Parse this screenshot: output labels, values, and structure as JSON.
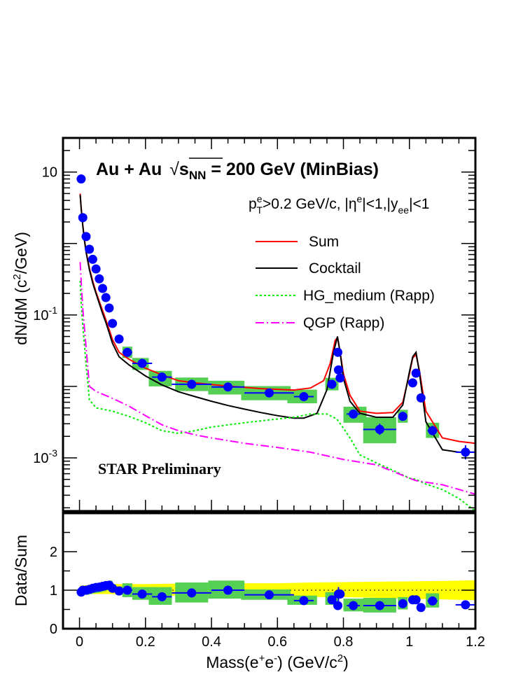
{
  "chart_data": [
    {
      "type": "scatter",
      "panel": "main",
      "title": "Au + Au √sNN = 200 GeV (MinBias)",
      "title_parts": {
        "system": "Au + Au",
        "sqrt": "s",
        "sub": "NN",
        "rest": " = 200 GeV (MinBias)"
      },
      "cuts_label": "pTe>0.2 GeV/c, |ηe|<1,|yee|<1",
      "cuts_parts": {
        "p": "p",
        "p_sup": "e",
        "p_sub": "T",
        "p_rest": ">0.2 GeV/c, |η",
        "eta_sup": "e",
        "eta_rest": "|<1,|y",
        "y_sub": "ee",
        "y_rest": "|<1"
      },
      "annotation": "STAR Preliminary",
      "ylabel": "dN/dM (c²/GeV)",
      "ylabel_parts": {
        "pre": "dN/dM (c",
        "sup": "2",
        "post": "/GeV)"
      },
      "y_scale": "log",
      "xlim": [
        -0.05,
        1.2
      ],
      "ylim": [
        0.00018,
        30
      ],
      "y_ticks": [
        {
          "value": 10,
          "mant": "10",
          "exp": ""
        },
        {
          "value": 0.1,
          "mant": "10",
          "exp": "-1"
        },
        {
          "value": 0.001,
          "mant": "10",
          "exp": "-3"
        }
      ],
      "legend": [
        {
          "label": "Sum",
          "color": "#ff0000",
          "style": "solid"
        },
        {
          "label": "Cocktail",
          "color": "#000000",
          "style": "solid"
        },
        {
          "label": "HG_medium (Rapp)",
          "color": "#00ee00",
          "style": "dotted"
        },
        {
          "label": "QGP (Rapp)",
          "color": "#ff00ff",
          "style": "dashdot"
        }
      ],
      "series": [
        {
          "name": "Sum",
          "color": "#ff0000",
          "x": [
            0.002,
            0.005,
            0.01,
            0.015,
            0.02,
            0.03,
            0.04,
            0.05,
            0.06,
            0.07,
            0.08,
            0.09,
            0.1,
            0.12,
            0.15,
            0.2,
            0.25,
            0.3,
            0.35,
            0.4,
            0.45,
            0.5,
            0.55,
            0.6,
            0.65,
            0.7,
            0.74,
            0.76,
            0.775,
            0.782,
            0.79,
            0.8,
            0.82,
            0.85,
            0.9,
            0.95,
            0.98,
            1.0,
            1.01,
            1.02,
            1.03,
            1.05,
            1.1,
            1.15,
            1.2
          ],
          "y": [
            5.0,
            3.2,
            1.8,
            1.15,
            0.78,
            0.45,
            0.3,
            0.21,
            0.155,
            0.115,
            0.085,
            0.062,
            0.045,
            0.03,
            0.024,
            0.018,
            0.0145,
            0.012,
            0.0112,
            0.0106,
            0.0101,
            0.0097,
            0.0093,
            0.0091,
            0.0089,
            0.0095,
            0.012,
            0.021,
            0.044,
            0.048,
            0.03,
            0.015,
            0.0075,
            0.0045,
            0.0042,
            0.0043,
            0.006,
            0.015,
            0.025,
            0.028,
            0.017,
            0.0045,
            0.0019,
            0.0017,
            0.0016
          ]
        },
        {
          "name": "Cocktail",
          "color": "#000000",
          "x": [
            0.002,
            0.005,
            0.01,
            0.015,
            0.02,
            0.03,
            0.04,
            0.05,
            0.06,
            0.07,
            0.08,
            0.09,
            0.1,
            0.12,
            0.15,
            0.2,
            0.25,
            0.3,
            0.35,
            0.4,
            0.45,
            0.5,
            0.55,
            0.6,
            0.65,
            0.68,
            0.72,
            0.75,
            0.77,
            0.782,
            0.79,
            0.8,
            0.82,
            0.85,
            0.9,
            0.95,
            0.98,
            1.0,
            1.01,
            1.02,
            1.03,
            1.05,
            1.1,
            1.15,
            1.2
          ],
          "y": [
            4.8,
            3.1,
            1.75,
            1.1,
            0.75,
            0.43,
            0.28,
            0.2,
            0.145,
            0.105,
            0.078,
            0.056,
            0.04,
            0.026,
            0.02,
            0.014,
            0.0105,
            0.0084,
            0.0072,
            0.0062,
            0.0054,
            0.0048,
            0.0043,
            0.0039,
            0.0036,
            0.0036,
            0.0042,
            0.009,
            0.03,
            0.05,
            0.03,
            0.013,
            0.0062,
            0.0042,
            0.0037,
            0.0037,
            0.0055,
            0.016,
            0.026,
            0.03,
            0.016,
            0.0032,
            0.0013,
            0.0012,
            0.0012
          ]
        },
        {
          "name": "HG_medium (Rapp)",
          "color": "#00ee00",
          "x": [
            0.002,
            0.005,
            0.01,
            0.02,
            0.03,
            0.05,
            0.1,
            0.15,
            0.2,
            0.25,
            0.3,
            0.35,
            0.4,
            0.5,
            0.6,
            0.65,
            0.7,
            0.75,
            0.78,
            0.8,
            0.82,
            0.85,
            0.9,
            0.95,
            1.0,
            1.02,
            1.05,
            1.1,
            1.15,
            1.2
          ],
          "y": [
            0.3,
            0.15,
            0.07,
            0.02,
            0.0065,
            0.005,
            0.0045,
            0.0038,
            0.0031,
            0.0024,
            0.0022,
            0.0024,
            0.0027,
            0.0031,
            0.0035,
            0.0037,
            0.0041,
            0.0041,
            0.0035,
            0.0026,
            0.0019,
            0.0011,
            0.00085,
            0.00067,
            0.00052,
            0.0005,
            0.00043,
            0.00036,
            0.00027,
            0.00018
          ]
        },
        {
          "name": "QGP (Rapp)",
          "color": "#ff00ff",
          "x": [
            0.002,
            0.005,
            0.01,
            0.02,
            0.03,
            0.05,
            0.1,
            0.15,
            0.2,
            0.25,
            0.3,
            0.35,
            0.4,
            0.5,
            0.6,
            0.7,
            0.8,
            0.9,
            1.0,
            1.02,
            1.1,
            1.2
          ],
          "y": [
            0.55,
            0.3,
            0.12,
            0.035,
            0.01,
            0.0085,
            0.0068,
            0.0053,
            0.0039,
            0.0029,
            0.0024,
            0.0021,
            0.0019,
            0.0016,
            0.0014,
            0.0012,
            0.00095,
            0.0008,
            0.00052,
            0.00048,
            0.00042,
            0.00031
          ]
        }
      ],
      "data": {
        "name": "Data",
        "color": "#0000ff",
        "x": [
          0.005,
          0.01,
          0.02,
          0.03,
          0.04,
          0.05,
          0.06,
          0.07,
          0.08,
          0.09,
          0.1,
          0.12,
          0.145,
          0.19,
          0.25,
          0.34,
          0.45,
          0.575,
          0.68,
          0.765,
          0.783,
          0.785,
          0.79,
          0.83,
          0.91,
          0.98,
          1.01,
          1.02,
          1.035,
          1.07,
          1.17
        ],
        "y": [
          8.0,
          2.3,
          1.25,
          0.83,
          0.6,
          0.44,
          0.32,
          0.235,
          0.175,
          0.125,
          0.076,
          0.046,
          0.03,
          0.021,
          0.0135,
          0.0107,
          0.0098,
          0.0081,
          0.0072,
          0.0107,
          0.03,
          0.017,
          0.0131,
          0.0041,
          0.0025,
          0.0038,
          0.0112,
          0.0153,
          0.0069,
          0.0024,
          0.0012
        ],
        "xerr": [
          0.005,
          0.005,
          0.005,
          0.005,
          0.005,
          0.005,
          0.005,
          0.005,
          0.005,
          0.005,
          0.005,
          0.01,
          0.015,
          0.03,
          0.03,
          0.06,
          0.05,
          0.075,
          0.03,
          0.01,
          0.003,
          0.003,
          0.003,
          0.02,
          0.05,
          0.01,
          0.003,
          0.003,
          0.005,
          0.015,
          0.03
        ],
        "ylo": [
          8.0,
          2.3,
          1.25,
          0.83,
          0.6,
          0.44,
          0.32,
          0.235,
          0.175,
          0.125,
          0.076,
          0.046,
          0.03,
          0.021,
          0.0135,
          0.0107,
          0.0098,
          0.0081,
          0.0072,
          0.0107,
          0.028,
          0.016,
          0.0122,
          0.0036,
          0.0021,
          0.0034,
          0.0102,
          0.0142,
          0.0062,
          0.0021,
          0.00095
        ],
        "yhi": [
          8.0,
          2.3,
          1.25,
          0.83,
          0.6,
          0.44,
          0.32,
          0.235,
          0.175,
          0.125,
          0.076,
          0.046,
          0.03,
          0.021,
          0.0135,
          0.0107,
          0.0098,
          0.0081,
          0.0072,
          0.0107,
          0.032,
          0.018,
          0.014,
          0.0047,
          0.003,
          0.0044,
          0.0124,
          0.0166,
          0.0077,
          0.0028,
          0.0015
        ],
        "sys_x0": [
          null,
          null,
          null,
          null,
          null,
          null,
          null,
          null,
          null,
          null,
          null,
          null,
          0.13,
          0.16,
          0.21,
          0.29,
          0.39,
          0.49,
          0.63,
          0.745,
          null,
          null,
          null,
          0.8,
          0.86,
          0.965,
          null,
          null,
          null,
          1.05,
          null
        ],
        "sys_x1": [
          null,
          null,
          null,
          null,
          null,
          null,
          null,
          null,
          null,
          null,
          null,
          null,
          0.16,
          0.21,
          0.28,
          0.39,
          0.5,
          0.64,
          0.72,
          0.785,
          null,
          null,
          null,
          0.87,
          0.96,
          0.995,
          null,
          null,
          null,
          1.09,
          null
        ],
        "sys_lo": [
          null,
          null,
          null,
          null,
          null,
          null,
          null,
          null,
          null,
          null,
          null,
          null,
          0.025,
          0.017,
          0.01,
          0.0086,
          0.0077,
          0.0064,
          0.0058,
          0.0088,
          null,
          null,
          null,
          0.0031,
          0.0016,
          0.0031,
          null,
          null,
          null,
          0.0019,
          null
        ],
        "sys_hi": [
          null,
          null,
          null,
          null,
          null,
          null,
          null,
          null,
          null,
          null,
          null,
          null,
          0.036,
          0.025,
          0.0165,
          0.0133,
          0.012,
          0.0101,
          0.009,
          0.0132,
          null,
          null,
          null,
          0.0052,
          0.0037,
          0.0047,
          null,
          null,
          null,
          0.0031,
          null
        ]
      }
    },
    {
      "type": "scatter",
      "panel": "ratio",
      "xlabel": "Mass(e⁺e⁻) (GeV/c²)",
      "xlabel_parts": {
        "pre": "Mass(e",
        "sup1": "+",
        "mid": "e",
        "sup2": "-",
        "post": ") (GeV/c",
        "sup3": "2",
        "end": ")"
      },
      "ylabel": "Data/Sum",
      "y_scale": "linear",
      "xlim": [
        -0.05,
        1.2
      ],
      "ylim": [
        0,
        3.0
      ],
      "x_ticks": [
        {
          "value": 0,
          "label": "0"
        },
        {
          "value": 0.2,
          "label": "0.2"
        },
        {
          "value": 0.4,
          "label": "0.4"
        },
        {
          "value": 0.6,
          "label": "0.6"
        },
        {
          "value": 0.8,
          "label": "0.8"
        },
        {
          "value": 1.0,
          "label": "1"
        },
        {
          "value": 1.2,
          "label": "1.2"
        }
      ],
      "y_ticks": [
        {
          "value": 0,
          "label": "0"
        },
        {
          "value": 1,
          "label": "1"
        },
        {
          "value": 2,
          "label": "2"
        }
      ],
      "reference_line": 1,
      "band": {
        "name": "Sum uncertainty",
        "color": "#ffff00",
        "x": [
          0.002,
          0.05,
          0.1,
          0.2,
          0.3,
          0.4,
          0.5,
          0.6,
          0.7,
          0.8,
          0.9,
          1.0,
          1.1,
          1.2
        ],
        "lo": [
          0.9,
          0.9,
          0.9,
          0.87,
          0.85,
          0.85,
          0.84,
          0.84,
          0.82,
          0.82,
          0.8,
          0.78,
          0.76,
          0.74
        ],
        "hi": [
          1.12,
          1.14,
          1.16,
          1.16,
          1.17,
          1.17,
          1.18,
          1.18,
          1.2,
          1.21,
          1.22,
          1.23,
          1.24,
          1.26
        ]
      },
      "data": {
        "name": "Data/Sum",
        "color": "#0000ff",
        "x": [
          0.005,
          0.01,
          0.02,
          0.03,
          0.04,
          0.05,
          0.06,
          0.07,
          0.08,
          0.09,
          0.1,
          0.12,
          0.145,
          0.19,
          0.25,
          0.34,
          0.45,
          0.575,
          0.68,
          0.765,
          0.783,
          0.785,
          0.79,
          0.83,
          0.91,
          0.98,
          1.01,
          1.02,
          1.035,
          1.07,
          1.17
        ],
        "y": [
          0.95,
          1.0,
          1.0,
          1.02,
          1.05,
          1.07,
          1.08,
          1.1,
          1.12,
          1.13,
          1.05,
          0.98,
          1.0,
          0.9,
          0.83,
          0.93,
          1.0,
          0.88,
          0.73,
          0.75,
          0.6,
          0.9,
          0.9,
          0.6,
          0.6,
          0.65,
          0.75,
          0.75,
          0.55,
          0.72,
          0.62
        ],
        "xerr": [
          0.005,
          0.005,
          0.005,
          0.005,
          0.005,
          0.005,
          0.005,
          0.005,
          0.005,
          0.005,
          0.005,
          0.01,
          0.015,
          0.03,
          0.03,
          0.06,
          0.05,
          0.075,
          0.03,
          0.01,
          0.003,
          0.003,
          0.003,
          0.02,
          0.05,
          0.01,
          0.003,
          0.003,
          0.005,
          0.015,
          0.03
        ],
        "ylo": [
          0.95,
          1.0,
          1.0,
          1.02,
          1.05,
          1.07,
          1.08,
          1.1,
          1.12,
          1.13,
          1.05,
          0.98,
          1.0,
          0.9,
          0.83,
          0.93,
          1.0,
          0.88,
          0.73,
          0.75,
          0.55,
          0.72,
          0.8,
          0.55,
          0.55,
          0.6,
          0.7,
          0.7,
          0.5,
          0.67,
          0.57
        ],
        "yhi": [
          0.95,
          1.0,
          1.0,
          1.02,
          1.05,
          1.07,
          1.08,
          1.1,
          1.12,
          1.13,
          1.05,
          0.98,
          1.0,
          0.9,
          0.83,
          0.93,
          1.0,
          0.88,
          0.73,
          0.75,
          0.65,
          1.08,
          1.0,
          0.65,
          0.65,
          0.7,
          0.8,
          0.8,
          0.6,
          0.77,
          0.67
        ],
        "sys_x0": [
          0.0,
          0.01,
          0.02,
          0.03,
          0.04,
          0.05,
          0.06,
          0.07,
          0.08,
          0.09,
          0.1,
          0.11,
          0.13,
          0.16,
          0.21,
          0.29,
          0.39,
          0.49,
          0.63,
          0.745,
          null,
          null,
          null,
          0.8,
          0.86,
          0.965,
          null,
          null,
          null,
          1.05,
          null
        ],
        "sys_x1": [
          0.01,
          0.02,
          0.03,
          0.04,
          0.05,
          0.06,
          0.07,
          0.08,
          0.09,
          0.1,
          0.11,
          0.13,
          0.16,
          0.21,
          0.28,
          0.39,
          0.5,
          0.64,
          0.72,
          0.785,
          null,
          null,
          null,
          0.87,
          0.96,
          0.995,
          null,
          null,
          null,
          1.09,
          null
        ],
        "sys_lo": [
          0.85,
          0.88,
          0.88,
          0.9,
          0.92,
          0.93,
          0.95,
          0.97,
          1.0,
          1.0,
          0.95,
          0.88,
          0.82,
          0.75,
          0.62,
          0.68,
          0.78,
          0.75,
          0.62,
          0.62,
          null,
          null,
          null,
          0.45,
          0.42,
          0.5,
          null,
          null,
          null,
          0.55,
          null
        ],
        "sys_hi": [
          1.05,
          1.1,
          1.1,
          1.12,
          1.15,
          1.17,
          1.19,
          1.21,
          1.23,
          1.25,
          1.15,
          1.1,
          1.18,
          1.08,
          1.08,
          1.2,
          1.25,
          1.02,
          0.86,
          0.95,
          null,
          null,
          null,
          0.78,
          0.8,
          0.82,
          null,
          null,
          null,
          0.92,
          null
        ]
      }
    }
  ]
}
